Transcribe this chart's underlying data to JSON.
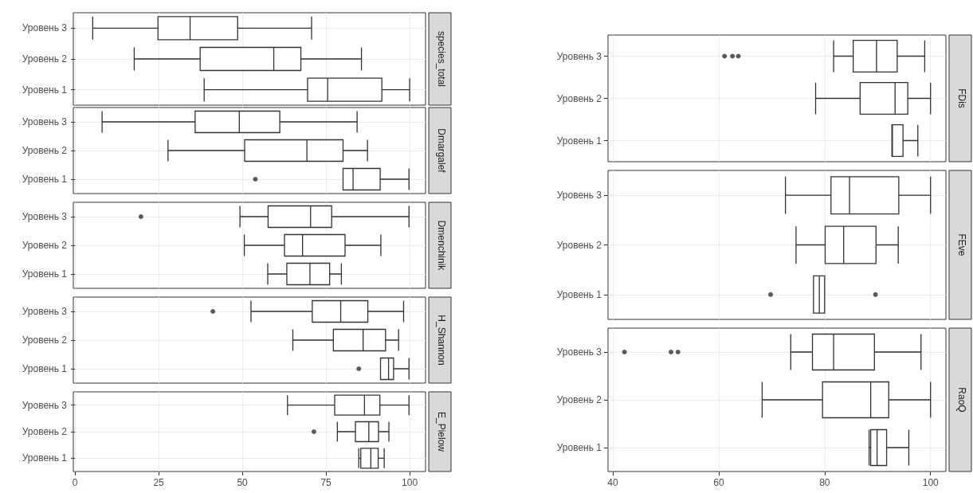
{
  "chart_data": [
    {
      "type": "box",
      "y2label": "species_total",
      "orientation": "horizontal",
      "categories": [
        "Уровень 3",
        "Уровень 2",
        "Уровень 1"
      ],
      "xlim": [
        -0.5,
        104.75
      ],
      "xticks": [
        0,
        25,
        50,
        75,
        100
      ],
      "grid": true,
      "tick_labels": "y",
      "color": "#333333",
      "boxes": [
        {
          "low": 5.3,
          "q1": 24.8,
          "median": 34.4,
          "q3": 48.6,
          "high": 70.7
        },
        {
          "low": 17.7,
          "q1": 37.4,
          "median": 59.4,
          "q3": 67.5,
          "high": 85.6
        },
        {
          "low": 38.6,
          "q1": 69.5,
          "median": 75.5,
          "q3": 91.7,
          "high": 100
        }
      ]
    },
    {
      "type": "box",
      "y2label": "Dmargalef",
      "orientation": "horizontal",
      "categories": [
        "Уровень 3",
        "Уровень 2",
        "Уровень 1"
      ],
      "xlim": [
        -0.5,
        104.75
      ],
      "xticks": [
        0,
        25,
        50,
        75,
        100
      ],
      "grid": true,
      "tick_labels": "y",
      "color": "#333333",
      "boxes": [
        {
          "low": 8.1,
          "q1": 35.9,
          "median": 49.1,
          "q3": 61.2,
          "high": 84.3
        },
        {
          "low": 27.8,
          "q1": 50.7,
          "median": 69.3,
          "q3": 80.1,
          "high": 87.4
        },
        {
          "low": 80.1,
          "q1": 80.1,
          "median": 83.1,
          "q3": 91.2,
          "high": 99.8,
          "outliers": [
            53.9
          ]
        }
      ]
    },
    {
      "type": "box",
      "y2label": "Dmenchinik",
      "orientation": "horizontal",
      "categories": [
        "Уровень 3",
        "Уровень 2",
        "Уровень 1"
      ],
      "xlim": [
        -0.5,
        104.75
      ],
      "xticks": [
        0,
        25,
        50,
        75,
        100
      ],
      "grid": true,
      "tick_labels": "y",
      "color": "#333333",
      "boxes": [
        {
          "low": 49.3,
          "q1": 57.7,
          "median": 70.4,
          "q3": 76.7,
          "high": 99.8,
          "outliers": [
            19.7
          ]
        },
        {
          "low": 50.6,
          "q1": 62.6,
          "median": 68.0,
          "q3": 80.7,
          "high": 91.4
        },
        {
          "low": 57.6,
          "q1": 63.3,
          "median": 70.2,
          "q3": 76.1,
          "high": 79.6
        }
      ]
    },
    {
      "type": "box",
      "y2label": "H_Shannon",
      "orientation": "horizontal",
      "categories": [
        "Уровень 3",
        "Уровень 2",
        "Уровень 1"
      ],
      "xlim": [
        -0.5,
        104.75
      ],
      "xticks": [
        0,
        25,
        50,
        75,
        100
      ],
      "grid": true,
      "tick_labels": "y",
      "color": "#333333",
      "boxes": [
        {
          "low": 52.6,
          "q1": 70.9,
          "median": 79.4,
          "q3": 87.5,
          "high": 98.2,
          "outliers": [
            41.2
          ]
        },
        {
          "low": 65.1,
          "q1": 77.2,
          "median": 86.1,
          "q3": 92.8,
          "high": 96.7
        },
        {
          "low": 91.3,
          "q1": 91.3,
          "median": 93.7,
          "q3": 95.2,
          "high": 99.8,
          "outliers": [
            84.8
          ]
        }
      ]
    },
    {
      "type": "box",
      "y2label": "E_Pielow",
      "orientation": "horizontal",
      "categories": [
        "Уровень 3",
        "Уровень 2",
        "Уровень 1"
      ],
      "xlim": [
        -0.5,
        104.75
      ],
      "xticks": [
        0,
        25,
        50,
        75,
        100
      ],
      "grid": true,
      "color": "#333333",
      "boxes": [
        {
          "low": 63.5,
          "q1": 77.6,
          "median": 86.5,
          "q3": 91.1,
          "high": 99.8
        },
        {
          "low": 78.4,
          "q1": 83.8,
          "median": 87.8,
          "q3": 90.7,
          "high": 93.8,
          "outliers": [
            71.4
          ]
        },
        {
          "low": 84.8,
          "q1": 85.4,
          "median": 88.4,
          "q3": 90.6,
          "high": 92.4
        }
      ]
    },
    {
      "type": "box",
      "y2label": "FDis",
      "orientation": "horizontal",
      "categories": [
        "Уровень 3",
        "Уровень 2",
        "Уровень 1"
      ],
      "xlim": [
        39.1,
        102.9
      ],
      "xticks": [
        40,
        60,
        80,
        100
      ],
      "grid": true,
      "tick_labels": "y",
      "color": "#333333",
      "boxes": [
        {
          "low": 81.7,
          "q1": 85.4,
          "median": 89.8,
          "q3": 93.7,
          "high": 98.9,
          "outliers": [
            61.1,
            62.6,
            63.7
          ]
        },
        {
          "low": 78.3,
          "q1": 86.7,
          "median": 93.3,
          "q3": 95.7,
          "high": 100
        },
        {
          "low": 92.7,
          "q1": 92.7,
          "median": 92.8,
          "q3": 94.8,
          "high": 97.6
        }
      ]
    },
    {
      "type": "box",
      "y2label": "FEve",
      "orientation": "horizontal",
      "categories": [
        "Уровень 3",
        "Уровень 2",
        "Уровень 1"
      ],
      "xlim": [
        39.1,
        102.9
      ],
      "xticks": [
        40,
        60,
        80,
        100
      ],
      "grid": true,
      "tick_labels": "y",
      "color": "#333333",
      "boxes": [
        {
          "low": 72.6,
          "q1": 81.2,
          "median": 84.7,
          "q3": 94.0,
          "high": 100
        },
        {
          "low": 74.6,
          "q1": 80.1,
          "median": 83.6,
          "q3": 89.7,
          "high": 93.9
        },
        {
          "low": 77.9,
          "q1": 77.9,
          "median": 79.0,
          "q3": 80.0,
          "high": 80.0,
          "outliers": [
            69.8,
            89.6
          ]
        }
      ]
    },
    {
      "type": "box",
      "y2label": "RaoQ",
      "orientation": "horizontal",
      "categories": [
        "Уровень 3",
        "Уровень 2",
        "Уровень 1"
      ],
      "xlim": [
        39.1,
        102.9
      ],
      "xticks": [
        40,
        60,
        80,
        100
      ],
      "grid": true,
      "color": "#333333",
      "boxes": [
        {
          "low": 73.6,
          "q1": 77.7,
          "median": 81.7,
          "q3": 89.4,
          "high": 98.2,
          "outliers": [
            42.2,
            51.0,
            52.3
          ]
        },
        {
          "low": 68.2,
          "q1": 79.6,
          "median": 88.7,
          "q3": 92.1,
          "high": 100
        },
        {
          "low": 88.4,
          "q1": 88.7,
          "median": 89.9,
          "q3": 91.7,
          "high": 95.9
        }
      ]
    }
  ]
}
